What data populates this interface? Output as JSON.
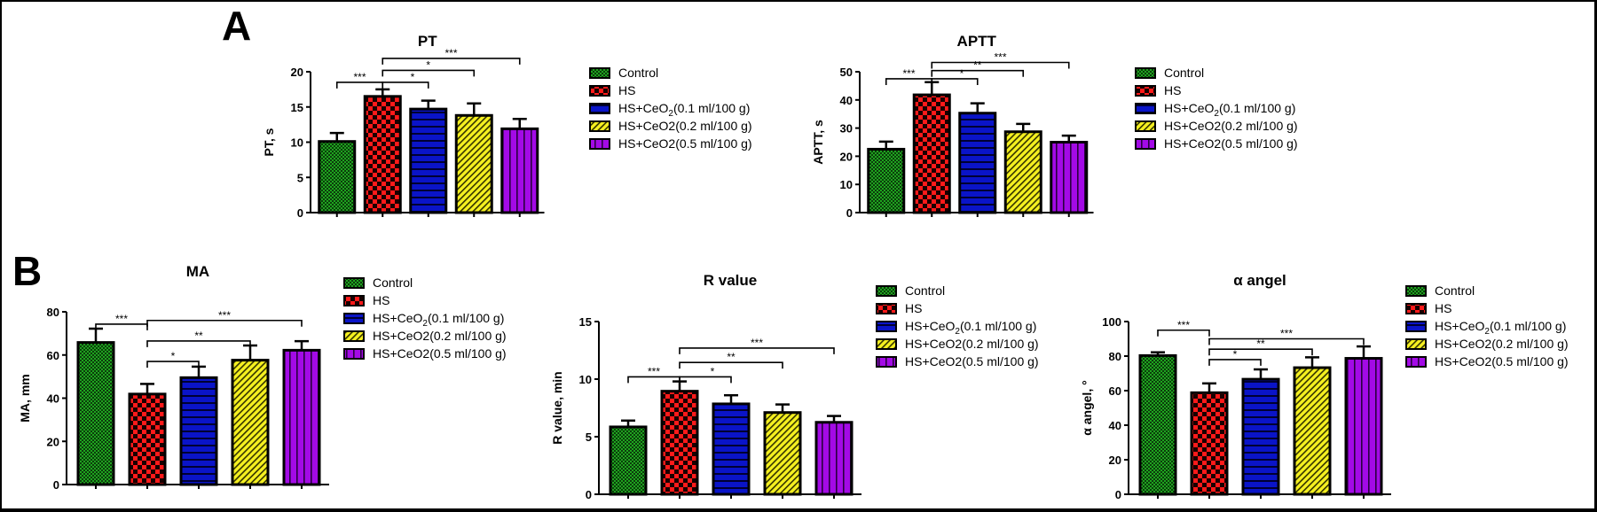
{
  "panels": {
    "a": "A",
    "b": "B"
  },
  "groups": [
    {
      "name": "Control",
      "color": "#1fa31f",
      "pattern": "fine-check"
    },
    {
      "name": "HS",
      "color": "#ff1a1a",
      "pattern": "coarse-check"
    },
    {
      "name": "HS+CeO2(0.1 ml/100 g)",
      "name_base": "HS+CeO",
      "name_sub": "2",
      "name_tail": "(0.1 ml/100 g)",
      "color": "#0a14c8",
      "pattern": "horizontal-lines"
    },
    {
      "name": "HS+CeO2(0.2 ml/100 g)",
      "color": "#f5f020",
      "pattern": "diagonal-lines"
    },
    {
      "name": "HS+CeO2(0.5 ml/100 g)",
      "color": "#a30ae6",
      "pattern": "vertical-lines"
    }
  ],
  "chart_data": [
    {
      "id": "pt",
      "panel": "A",
      "type": "bar",
      "title": "PT",
      "ylabel": "PT, s",
      "xlabel": "",
      "ylim": [
        0,
        20
      ],
      "yticks": [
        0,
        5,
        10,
        15,
        20
      ],
      "categories": [
        "Control",
        "HS",
        "HS+CeO2(0.1 ml/100 g)",
        "HS+CeO2(0.2 ml/100 g)",
        "HS+CeO2(0.5 ml/100 g)"
      ],
      "values": [
        10.1,
        16.5,
        14.7,
        13.8,
        11.9
      ],
      "errors": [
        1.2,
        1.0,
        1.2,
        1.7,
        1.4
      ],
      "significance": [
        {
          "from": 0,
          "to": 1,
          "label": "***",
          "level": 0
        },
        {
          "from": 1,
          "to": 2,
          "label": "*",
          "level": 0
        },
        {
          "from": 1,
          "to": 3,
          "label": "*",
          "level": 1
        },
        {
          "from": 1,
          "to": 4,
          "label": "***",
          "level": 2
        }
      ],
      "legend": "right"
    },
    {
      "id": "aptt",
      "panel": "A",
      "type": "bar",
      "title": "APTT",
      "ylabel": "APTT, s",
      "xlabel": "",
      "ylim": [
        0,
        50
      ],
      "yticks": [
        0,
        10,
        20,
        30,
        40,
        50
      ],
      "categories": [
        "Control",
        "HS",
        "HS+CeO2(0.1 ml/100 g)",
        "HS+CeO2(0.2 ml/100 g)",
        "HS+CeO2(0.5 ml/100 g)"
      ],
      "values": [
        22.5,
        41.8,
        35.3,
        28.7,
        25.0
      ],
      "errors": [
        2.7,
        4.5,
        3.5,
        2.8,
        2.3
      ],
      "significance": [
        {
          "from": 0,
          "to": 1,
          "label": "***",
          "level": 0
        },
        {
          "from": 1,
          "to": 2,
          "label": "*",
          "level": 0
        },
        {
          "from": 1,
          "to": 3,
          "label": "**",
          "level": 1
        },
        {
          "from": 1,
          "to": 4,
          "label": "***",
          "level": 2
        }
      ],
      "legend": "right"
    },
    {
      "id": "ma",
      "panel": "B",
      "type": "bar",
      "title": "MA",
      "ylabel": "MA, mm",
      "xlabel": "",
      "ylim": [
        0,
        80
      ],
      "yticks": [
        0,
        20,
        40,
        60,
        80
      ],
      "categories": [
        "Control",
        "HS",
        "HS+CeO2(0.1 ml/100 g)",
        "HS+CeO2(0.2 ml/100 g)",
        "HS+CeO2(0.5 ml/100 g)"
      ],
      "values": [
        65.8,
        41.9,
        49.5,
        57.6,
        62.2
      ],
      "errors": [
        6.4,
        4.7,
        5.1,
        6.8,
        4.2
      ],
      "significance": [
        {
          "from": 0,
          "to": 1,
          "label": "***",
          "level": 3
        },
        {
          "from": 1,
          "to": 2,
          "label": "*",
          "level": 0
        },
        {
          "from": 1,
          "to": 3,
          "label": "**",
          "level": 1
        },
        {
          "from": 1,
          "to": 4,
          "label": "***",
          "level": 2
        }
      ],
      "legend": "right"
    },
    {
      "id": "r",
      "panel": "B",
      "type": "bar",
      "title": "R value",
      "ylabel": "R value, min",
      "xlabel": "",
      "ylim": [
        0,
        15
      ],
      "yticks": [
        0,
        5,
        10,
        15
      ],
      "categories": [
        "Control",
        "HS",
        "HS+CeO2(0.1 ml/100 g)",
        "HS+CeO2(0.2 ml/100 g)",
        "HS+CeO2(0.5 ml/100 g)"
      ],
      "values": [
        5.85,
        8.95,
        7.85,
        7.1,
        6.25
      ],
      "errors": [
        0.55,
        0.85,
        0.75,
        0.7,
        0.55
      ],
      "significance": [
        {
          "from": 0,
          "to": 1,
          "label": "***",
          "level": 0
        },
        {
          "from": 1,
          "to": 2,
          "label": "*",
          "level": 0
        },
        {
          "from": 1,
          "to": 3,
          "label": "**",
          "level": 1
        },
        {
          "from": 1,
          "to": 4,
          "label": "***",
          "level": 2
        }
      ],
      "legend": "right"
    },
    {
      "id": "alpha",
      "panel": "B",
      "type": "bar",
      "title": "α angel",
      "ylabel": "α angel, °",
      "xlabel": "",
      "ylim": [
        0,
        100
      ],
      "yticks": [
        0,
        20,
        40,
        60,
        80,
        100
      ],
      "categories": [
        "Control",
        "HS",
        "HS+CeO2(0.1 ml/100 g)",
        "HS+CeO2(0.2 ml/100 g)",
        "HS+CeO2(0.5 ml/100 g)"
      ],
      "values": [
        80.3,
        58.8,
        66.6,
        73.3,
        78.7
      ],
      "errors": [
        1.9,
        5.4,
        5.7,
        6.0,
        6.9
      ],
      "significance": [
        {
          "from": 0,
          "to": 1,
          "label": "***",
          "level": 3
        },
        {
          "from": 1,
          "to": 2,
          "label": "*",
          "level": 0
        },
        {
          "from": 1,
          "to": 3,
          "label": "**",
          "level": 1
        },
        {
          "from": 1,
          "to": 4,
          "label": "***",
          "level": 2
        }
      ],
      "legend": "right"
    }
  ]
}
